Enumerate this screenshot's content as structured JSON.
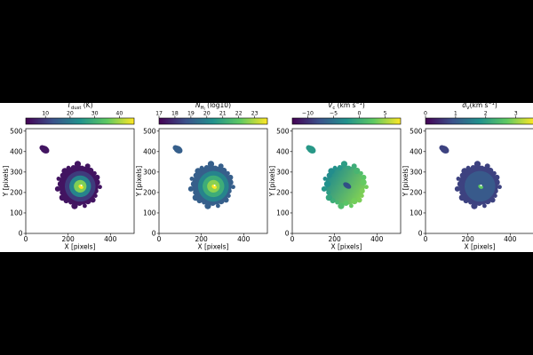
{
  "chart_data": [
    {
      "type": "heatmap",
      "map": "dust-temperature",
      "colorbar": {
        "label": "T_dust (K)",
        "label_parts": {
          "symbol": "T",
          "subscript": "dust",
          "unit": " (K)"
        },
        "range": [
          2,
          46
        ],
        "ticks": [
          10,
          20,
          30,
          40
        ],
        "tick_labels": [
          "10",
          "20",
          "30",
          "40"
        ],
        "colormap": "viridis",
        "stops": [
          "#440154",
          "#3b528b",
          "#21918c",
          "#5ec962",
          "#fde725"
        ]
      },
      "xlabel": "X [pixels]",
      "ylabel": "Y [pixels]",
      "xlim": [
        0,
        512
      ],
      "ylim": [
        0,
        512
      ],
      "xticks": [
        0,
        200,
        400
      ],
      "yticks": [
        0,
        100,
        200,
        300,
        400,
        500
      ],
      "field": {
        "background_level": 0.06,
        "center_level": 1.0,
        "ring_levels": [
          0.18,
          0.45,
          0.8
        ],
        "gradient_levels": [
          0.0,
          0.0
        ],
        "peak_color": "#fde725"
      }
    },
    {
      "type": "heatmap",
      "map": "hydrogen-column-density",
      "colorbar": {
        "label": "N_H_I (log10)",
        "label_parts": {
          "symbol": "N",
          "subscript": "H",
          "subsubscript": "I",
          "unit": " (log10)"
        },
        "range": [
          17,
          23.8
        ],
        "ticks": [
          17,
          18,
          19,
          20,
          21,
          22,
          23
        ],
        "tick_labels": [
          "17",
          "18",
          "19",
          "20",
          "21",
          "22",
          "23"
        ],
        "colormap": "viridis",
        "stops": [
          "#440154",
          "#3b528b",
          "#21918c",
          "#5ec962",
          "#fde725"
        ]
      },
      "xlabel": "X [pixels]",
      "ylabel": "Y [pixels]",
      "xlim": [
        0,
        512
      ],
      "ylim": [
        0,
        512
      ],
      "xticks": [
        0,
        200,
        400
      ],
      "yticks": [
        0,
        100,
        200,
        300,
        400,
        500
      ],
      "field": {
        "background_level": 0.3,
        "center_level": 1.0,
        "ring_levels": [
          0.45,
          0.62,
          0.82
        ],
        "gradient_levels": [
          0.0,
          0.0
        ],
        "peak_color": "#fde725"
      }
    },
    {
      "type": "heatmap",
      "map": "centroid-velocity",
      "colorbar": {
        "label": "V_c (km s^-1)",
        "label_parts": {
          "symbol": "V",
          "subscript": "c",
          "unit": " (km s",
          "superscript": "−1",
          "close": ")"
        },
        "range": [
          -13,
          8
        ],
        "ticks": [
          -10,
          -5,
          0,
          5
        ],
        "tick_labels": [
          "−10",
          "−5",
          "0",
          "5"
        ],
        "colormap": "viridis",
        "stops": [
          "#440154",
          "#3b528b",
          "#21918c",
          "#5ec962",
          "#fde725"
        ]
      },
      "xlabel": "X [pixels]",
      "ylabel": "Y [pixels]",
      "xlim": [
        0,
        512
      ],
      "ylim": [
        0,
        512
      ],
      "xticks": [
        0,
        200,
        400
      ],
      "yticks": [
        0,
        100,
        200,
        300,
        400,
        500
      ],
      "field": {
        "background_level": 0.55,
        "center_level": 0.62,
        "ring_levels": [],
        "gradient_levels": [
          0.48,
          0.8
        ],
        "peak_color": "#2c3e8a"
      }
    },
    {
      "type": "heatmap",
      "map": "velocity-dispersion",
      "colorbar": {
        "label": "σ_V (km s^-1)",
        "label_parts": {
          "symbol": "σ",
          "subscript": "V",
          "unit": "(km s",
          "superscript": "−1",
          "close": ")"
        },
        "range": [
          0,
          3.6
        ],
        "ticks": [
          0,
          1,
          2,
          3
        ],
        "tick_labels": [
          "0",
          "1",
          "2",
          "3"
        ],
        "colormap": "viridis",
        "stops": [
          "#440154",
          "#3b528b",
          "#21918c",
          "#5ec962",
          "#fde725"
        ]
      },
      "xlabel": "X [pixels]",
      "ylabel": "Y [pixels]",
      "xlim": [
        0,
        512
      ],
      "ylim": [
        0,
        512
      ],
      "xticks": [
        0,
        200,
        400
      ],
      "yticks": [
        0,
        100,
        200,
        300,
        400,
        500
      ],
      "field": {
        "background_level": 0.2,
        "center_level": 0.7,
        "ring_levels": [
          0.28
        ],
        "gradient_levels": [
          0.0,
          0.0
        ],
        "peak_color": "#5ec962"
      }
    }
  ]
}
